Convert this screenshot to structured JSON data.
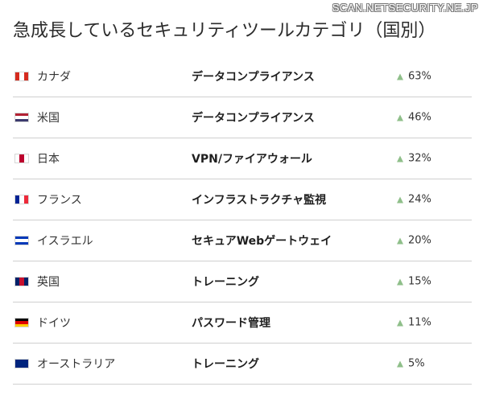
{
  "watermark": "SCAN.NETSECURITY.NE.JP",
  "chart_data": {
    "type": "table",
    "title": "急成長しているセキュリティツールカテゴリ（国別）",
    "columns": [
      "",
      "",
      ""
    ],
    "rows": [
      {
        "country": "カナダ",
        "flag_colors": [
          "#d52b1e",
          "#ffffff",
          "#d52b1e"
        ],
        "flag_dir": "v",
        "category": "データコンプライアンス",
        "growth_pct": 63,
        "growth_label": "63%"
      },
      {
        "country": "米国",
        "flag_colors": [
          "#b22234",
          "#ffffff",
          "#3c3b6e"
        ],
        "flag_dir": "h",
        "category": "データコンプライアンス",
        "growth_pct": 46,
        "growth_label": "46%"
      },
      {
        "country": "日本",
        "flag_colors": [
          "#ffffff",
          "#bc002d",
          "#ffffff"
        ],
        "flag_dir": "v",
        "category": "VPN/ファイアウォール",
        "growth_pct": 32,
        "growth_label": "32%"
      },
      {
        "country": "フランス",
        "flag_colors": [
          "#002395",
          "#ffffff",
          "#ed2939"
        ],
        "flag_dir": "v",
        "category": "インフラストラクチャ監視",
        "growth_pct": 24,
        "growth_label": "24%"
      },
      {
        "country": "イスラエル",
        "flag_colors": [
          "#0038b8",
          "#ffffff",
          "#0038b8"
        ],
        "flag_dir": "h",
        "category": "セキュアWebゲートウェイ",
        "growth_pct": 20,
        "growth_label": "20%"
      },
      {
        "country": "英国",
        "flag_colors": [
          "#012169",
          "#c8102e",
          "#012169"
        ],
        "flag_dir": "v",
        "category": "トレーニング",
        "growth_pct": 15,
        "growth_label": "15%"
      },
      {
        "country": "ドイツ",
        "flag_colors": [
          "#000000",
          "#dd0000",
          "#ffce00"
        ],
        "flag_dir": "h",
        "category": "パスワード管理",
        "growth_pct": 11,
        "growth_label": "11%"
      },
      {
        "country": "オーストラリア",
        "flag_colors": [
          "#00247d",
          "#00247d",
          "#00247d"
        ],
        "flag_dir": "v",
        "category": "トレーニング",
        "growth_pct": 5,
        "growth_label": "5%"
      }
    ],
    "growth_arrow_color": "#8fbf8a",
    "growth_arrow_icon": "triangle-up-icon"
  }
}
